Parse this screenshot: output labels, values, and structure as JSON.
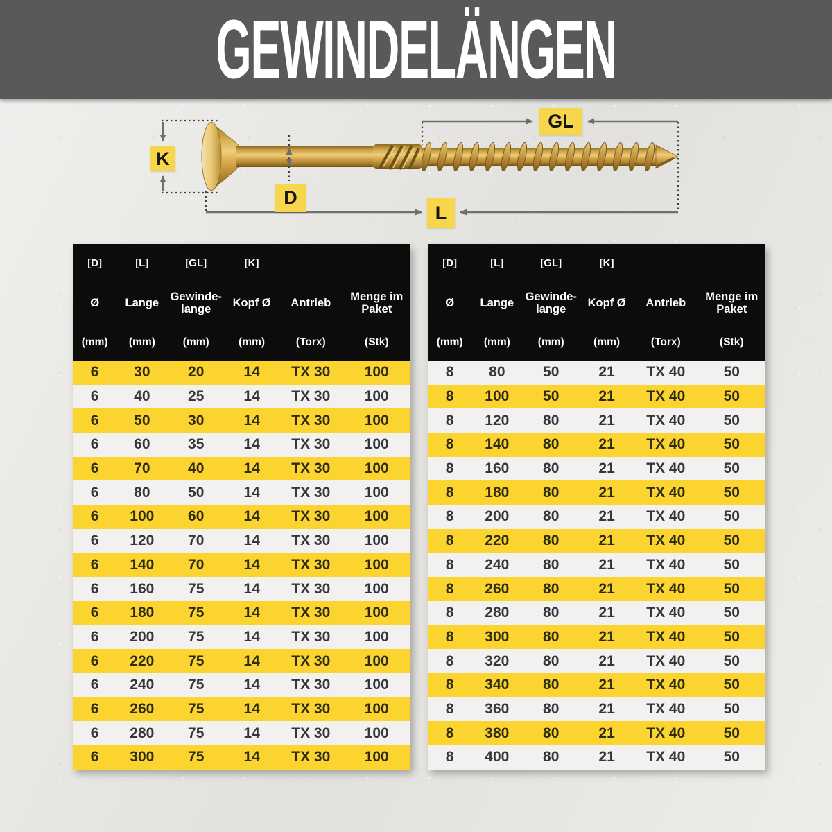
{
  "header": {
    "title": "GEWINDELÄNGEN"
  },
  "diagram": {
    "labels": {
      "k": "K",
      "d": "D",
      "gl": "GL",
      "l": "L"
    }
  },
  "colors": {
    "banner_gray": "#59585a",
    "header_black": "#0c0c0c",
    "row_yellow": "#fcd42f",
    "row_white": "#f2f1ef",
    "label_yellow": "#f7d64b",
    "screw_gold": "#cfa045"
  },
  "tables": [
    {
      "bracket_row": [
        "[D]",
        "[L]",
        "[GL]",
        "[K]",
        "",
        ""
      ],
      "name_row": [
        "Ø",
        "Lange",
        "Gewinde-\nlange",
        "Kopf Ø",
        "Antrieb",
        "Menge im\nPaket"
      ],
      "unit_row": [
        "(mm)",
        "(mm)",
        "(mm)",
        "(mm)",
        "(Torx)",
        "(Stk)"
      ],
      "first_row_style": "yellow",
      "rows": [
        [
          "6",
          "30",
          "20",
          "14",
          "TX 30",
          "100"
        ],
        [
          "6",
          "40",
          "25",
          "14",
          "TX 30",
          "100"
        ],
        [
          "6",
          "50",
          "30",
          "14",
          "TX 30",
          "100"
        ],
        [
          "6",
          "60",
          "35",
          "14",
          "TX 30",
          "100"
        ],
        [
          "6",
          "70",
          "40",
          "14",
          "TX 30",
          "100"
        ],
        [
          "6",
          "80",
          "50",
          "14",
          "TX 30",
          "100"
        ],
        [
          "6",
          "100",
          "60",
          "14",
          "TX 30",
          "100"
        ],
        [
          "6",
          "120",
          "70",
          "14",
          "TX 30",
          "100"
        ],
        [
          "6",
          "140",
          "70",
          "14",
          "TX 30",
          "100"
        ],
        [
          "6",
          "160",
          "75",
          "14",
          "TX 30",
          "100"
        ],
        [
          "6",
          "180",
          "75",
          "14",
          "TX 30",
          "100"
        ],
        [
          "6",
          "200",
          "75",
          "14",
          "TX 30",
          "100"
        ],
        [
          "6",
          "220",
          "75",
          "14",
          "TX 30",
          "100"
        ],
        [
          "6",
          "240",
          "75",
          "14",
          "TX 30",
          "100"
        ],
        [
          "6",
          "260",
          "75",
          "14",
          "TX 30",
          "100"
        ],
        [
          "6",
          "280",
          "75",
          "14",
          "TX 30",
          "100"
        ],
        [
          "6",
          "300",
          "75",
          "14",
          "TX 30",
          "100"
        ]
      ]
    },
    {
      "bracket_row": [
        "[D]",
        "[L]",
        "[GL]",
        "[K]",
        "",
        ""
      ],
      "name_row": [
        "Ø",
        "Lange",
        "Gewinde-\nlange",
        "Kopf Ø",
        "Antrieb",
        "Menge im\nPaket"
      ],
      "unit_row": [
        "(mm)",
        "(mm)",
        "(mm)",
        "(mm)",
        "(Torx)",
        "(Stk)"
      ],
      "first_row_style": "white",
      "rows": [
        [
          "8",
          "80",
          "50",
          "21",
          "TX 40",
          "50"
        ],
        [
          "8",
          "100",
          "50",
          "21",
          "TX 40",
          "50"
        ],
        [
          "8",
          "120",
          "80",
          "21",
          "TX 40",
          "50"
        ],
        [
          "8",
          "140",
          "80",
          "21",
          "TX 40",
          "50"
        ],
        [
          "8",
          "160",
          "80",
          "21",
          "TX 40",
          "50"
        ],
        [
          "8",
          "180",
          "80",
          "21",
          "TX 40",
          "50"
        ],
        [
          "8",
          "200",
          "80",
          "21",
          "TX 40",
          "50"
        ],
        [
          "8",
          "220",
          "80",
          "21",
          "TX 40",
          "50"
        ],
        [
          "8",
          "240",
          "80",
          "21",
          "TX 40",
          "50"
        ],
        [
          "8",
          "260",
          "80",
          "21",
          "TX 40",
          "50"
        ],
        [
          "8",
          "280",
          "80",
          "21",
          "TX 40",
          "50"
        ],
        [
          "8",
          "300",
          "80",
          "21",
          "TX 40",
          "50"
        ],
        [
          "8",
          "320",
          "80",
          "21",
          "TX 40",
          "50"
        ],
        [
          "8",
          "340",
          "80",
          "21",
          "TX 40",
          "50"
        ],
        [
          "8",
          "360",
          "80",
          "21",
          "TX 40",
          "50"
        ],
        [
          "8",
          "380",
          "80",
          "21",
          "TX 40",
          "50"
        ],
        [
          "8",
          "400",
          "80",
          "21",
          "TX 40",
          "50"
        ]
      ]
    }
  ]
}
